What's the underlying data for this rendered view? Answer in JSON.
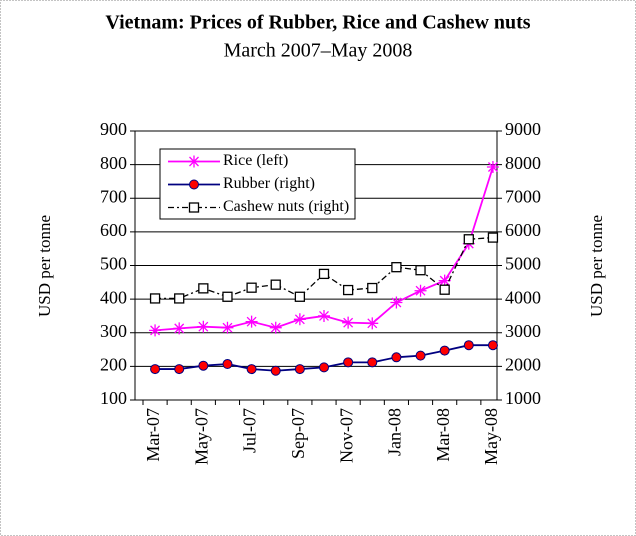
{
  "chart_data": {
    "type": "line",
    "title": "Vietnam: Prices of Rubber, Rice and Cashew nuts",
    "subtitle": "March 2007–May 2008",
    "y_label": "USD per tonne",
    "y2_label": "USD per tonne",
    "categories": [
      "Mar-07",
      null,
      "May-07",
      null,
      "Jul-07",
      null,
      "Sep-07",
      null,
      "Nov-07",
      null,
      "Jan-08",
      null,
      "Mar-08",
      null,
      "May-08"
    ],
    "series": [
      {
        "name": "Rice (left)",
        "color": "#ff00ff",
        "marker": "star",
        "axis": "y",
        "values": [
          307,
          313,
          318,
          315,
          333,
          315,
          340,
          350,
          330,
          328,
          390,
          425,
          455,
          565,
          793
        ]
      },
      {
        "name": "Rubber (right)",
        "color": "#000080",
        "marker": "circle",
        "marker_color": "#ff0000",
        "axis": "y2",
        "values": [
          1920,
          1920,
          2020,
          2070,
          1920,
          1870,
          1920,
          1970,
          2120,
          2120,
          2270,
          2320,
          2470,
          2630,
          2630
        ]
      },
      {
        "name": "Cashew nuts (right)",
        "color": "#000000",
        "marker": "square",
        "dashed": true,
        "axis": "y2",
        "values": [
          4020,
          4020,
          4320,
          4070,
          4340,
          4430,
          4070,
          4750,
          4270,
          4330,
          4950,
          4860,
          4280,
          5780,
          5830
        ]
      }
    ],
    "ylim": [
      100,
      900
    ],
    "yticks": [
      100,
      200,
      300,
      400,
      500,
      600,
      700,
      800,
      900
    ],
    "y2lim": [
      1000,
      9000
    ],
    "y2ticks": [
      1000,
      2000,
      3000,
      4000,
      5000,
      6000,
      7000,
      8000,
      9000
    ],
    "grid": true,
    "legend": "top-left"
  }
}
